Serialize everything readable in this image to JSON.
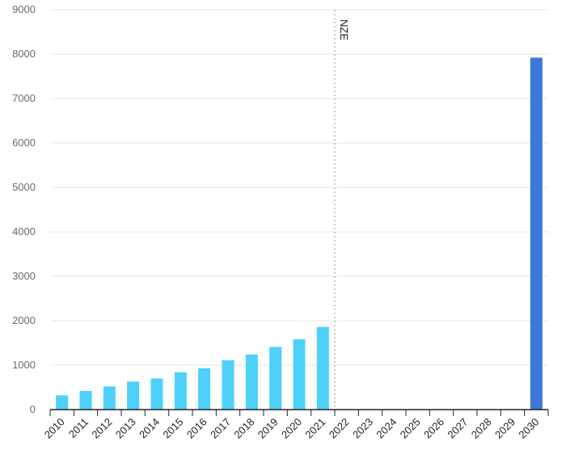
{
  "chart_data": {
    "type": "bar",
    "categories": [
      "2010",
      "2011",
      "2012",
      "2013",
      "2014",
      "2015",
      "2016",
      "2017",
      "2018",
      "2019",
      "2020",
      "2021",
      "2022",
      "2023",
      "2024",
      "2025",
      "2026",
      "2027",
      "2028",
      "2029",
      "2030"
    ],
    "values": [
      320,
      420,
      520,
      630,
      700,
      840,
      930,
      1110,
      1240,
      1410,
      1580,
      1860,
      null,
      null,
      null,
      null,
      null,
      null,
      null,
      null,
      7920
    ],
    "ylim": [
      0,
      9000
    ],
    "yticks": [
      0,
      1000,
      2000,
      3000,
      4000,
      5000,
      6000,
      7000,
      8000,
      9000
    ],
    "grid": true,
    "annotation": {
      "label": "NZE",
      "at": "2022"
    },
    "colors": {
      "historical": "#4dd0fa",
      "projection": "#3c78d8",
      "grid": "#e4e4e4",
      "axis": "#222222",
      "marker": "#9a9a9a"
    },
    "projection_categories": [
      "2030"
    ]
  }
}
